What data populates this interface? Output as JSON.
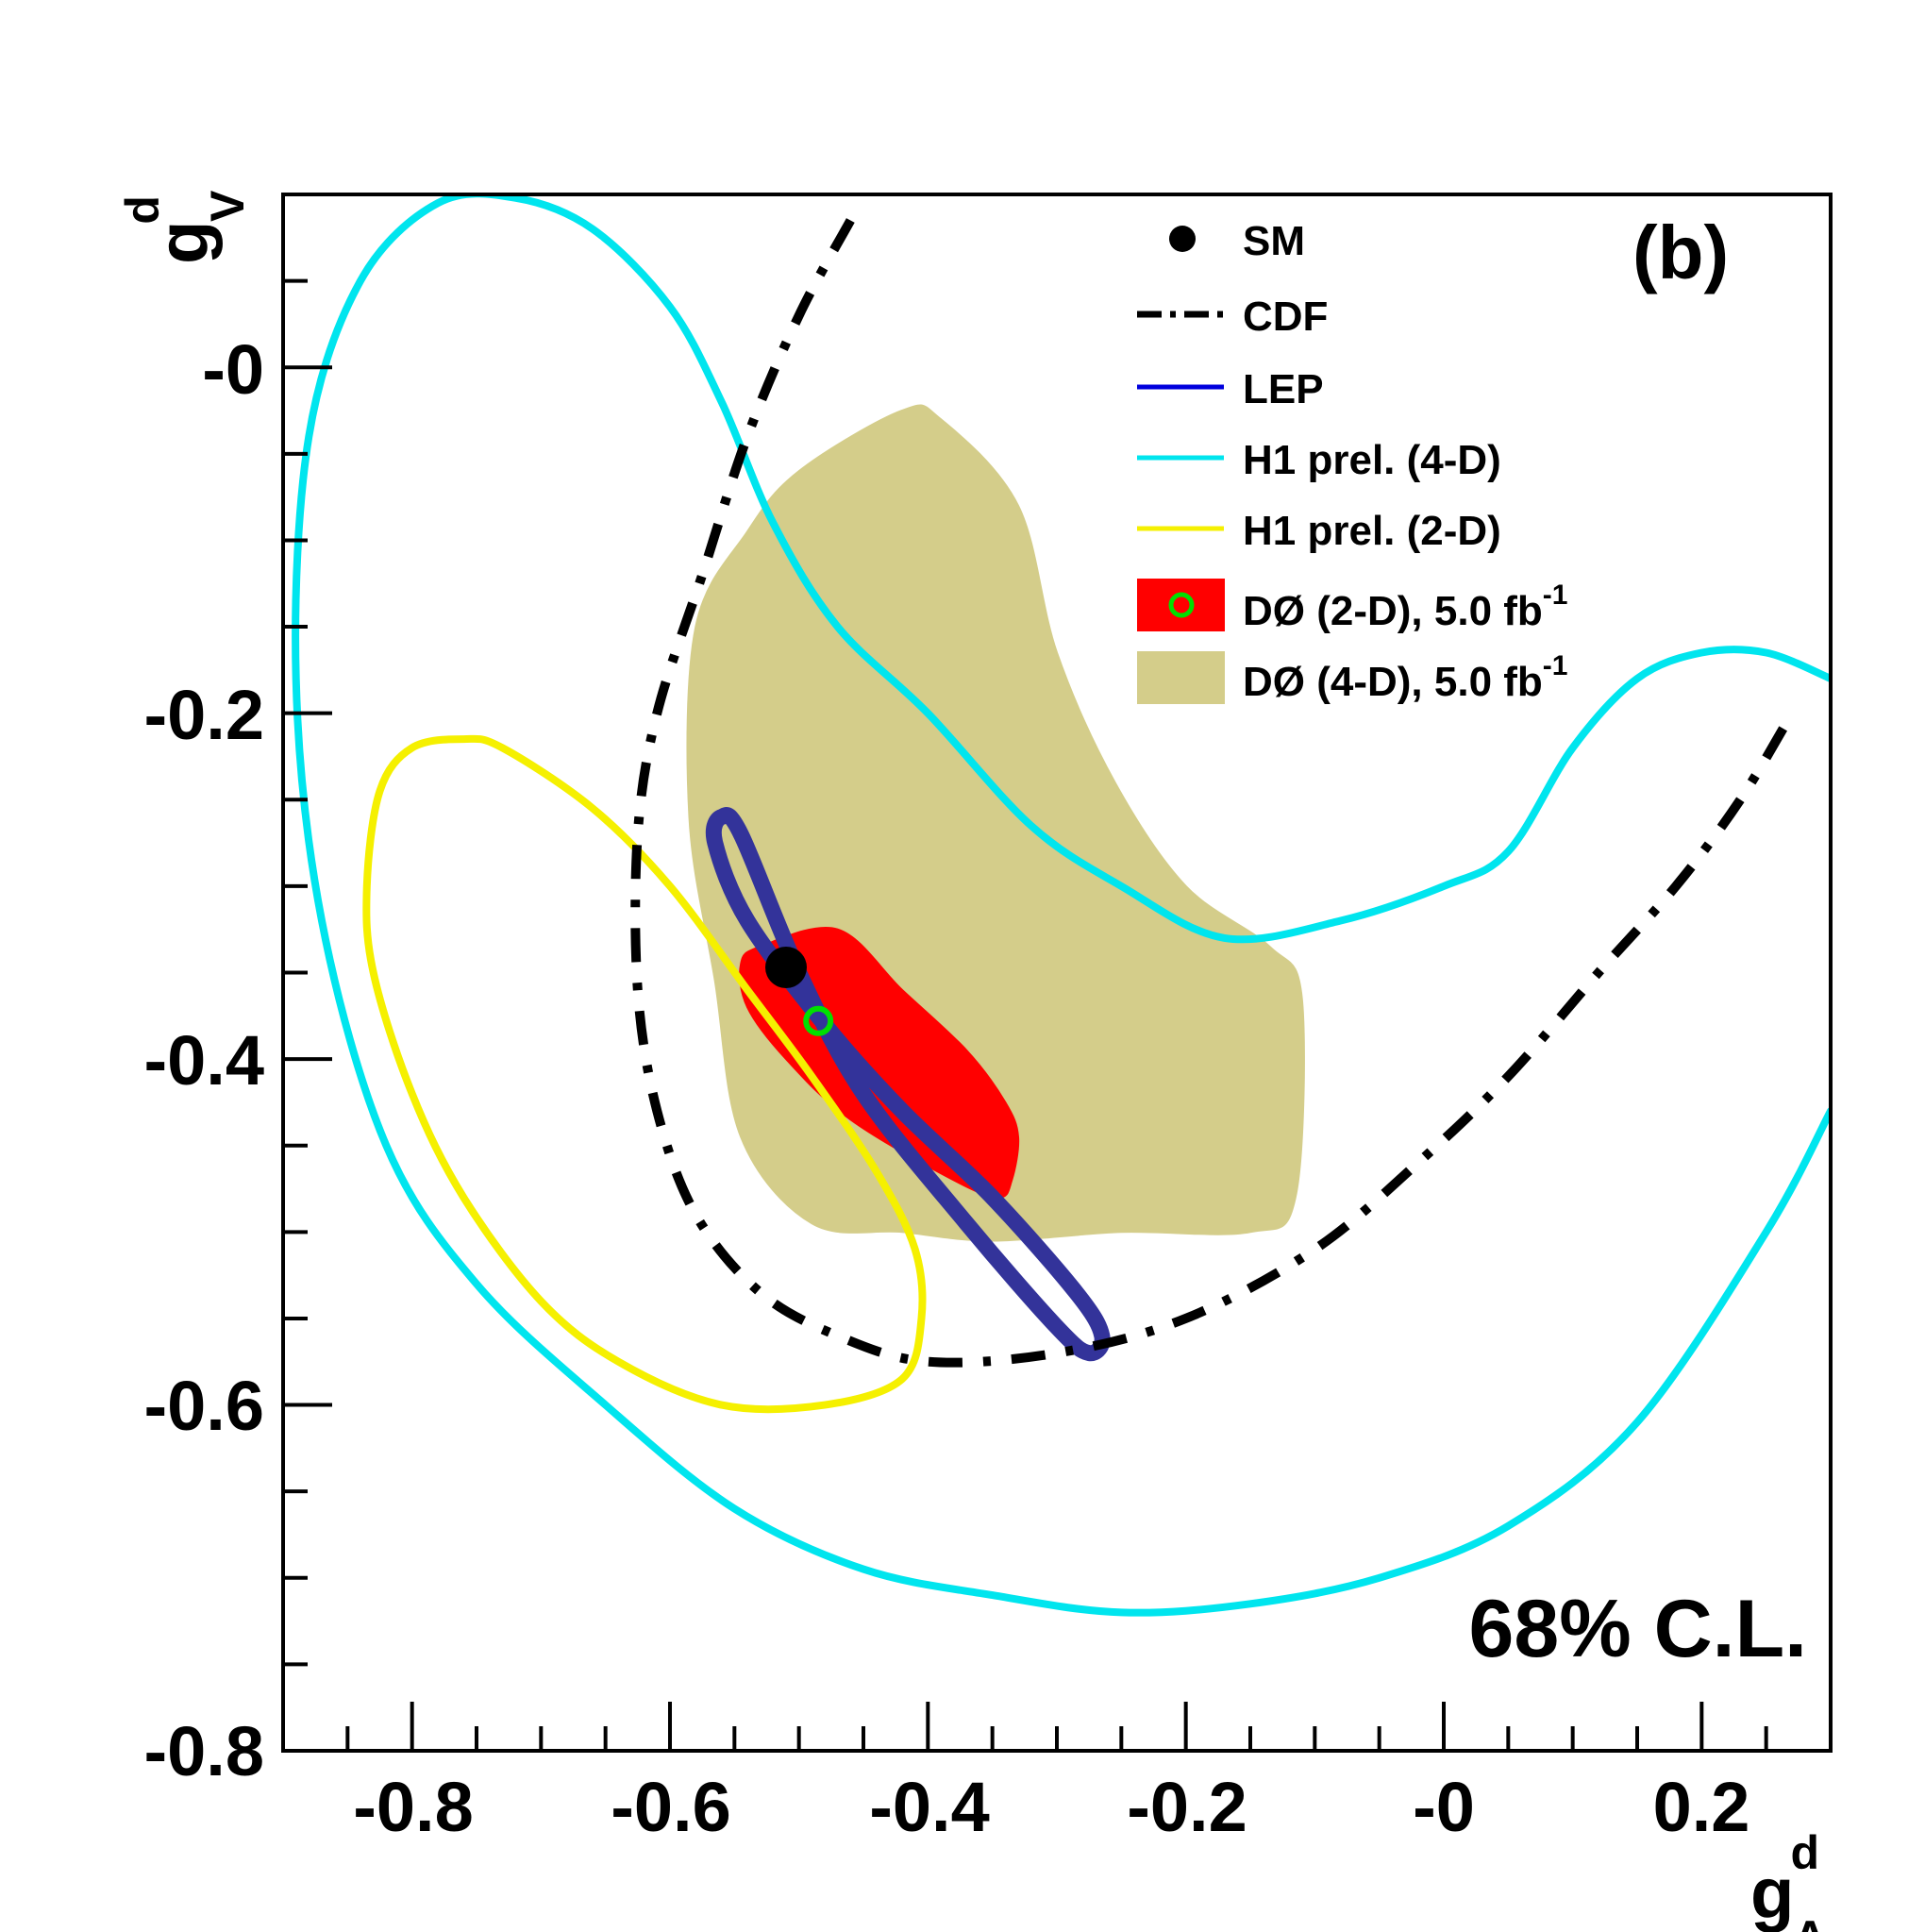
{
  "chart_data": {
    "type": "contour",
    "panel_label": "(b)",
    "annotation": "68% C.L.",
    "x_axis": {
      "label_main": "g",
      "label_sup": "d",
      "label_sub": "A",
      "range": [
        -0.9,
        0.3
      ],
      "major_ticks": [
        -0.8,
        -0.6,
        -0.4,
        -0.2,
        0.0,
        0.2
      ],
      "tick_labels": [
        "-0.8",
        "-0.6",
        "-0.4",
        "-0.2",
        "-0",
        "0.2"
      ],
      "minor_step": 0.05
    },
    "y_axis": {
      "label_main": "g",
      "label_sup": "d",
      "label_sub": "V",
      "range": [
        -0.8,
        0.1
      ],
      "major_ticks": [
        -0.8,
        -0.6,
        -0.4,
        -0.2,
        0.0
      ],
      "tick_labels": [
        "-0.8",
        "-0.6",
        "-0.4",
        "-0.2",
        "-0"
      ],
      "minor_step": 0.05
    },
    "legend": {
      "position": "top-right",
      "items": [
        {
          "key": "sm",
          "label": "SM",
          "sup": ""
        },
        {
          "key": "cdf",
          "label": "CDF",
          "sup": ""
        },
        {
          "key": "lep",
          "label": "LEP",
          "sup": ""
        },
        {
          "key": "h1_4d",
          "label": "H1 prel. (4-D)",
          "sup": ""
        },
        {
          "key": "h1_2d",
          "label": "H1 prel. (2-D)",
          "sup": ""
        },
        {
          "key": "d0_2d",
          "label": "DØ (2-D), 5.0 fb",
          "sup": "-1"
        },
        {
          "key": "d0_4d",
          "label": "DØ (4-D), 5.0 fb",
          "sup": "-1"
        }
      ]
    },
    "colors": {
      "sm": "#000000",
      "cdf": "#000000",
      "lep": "#33339a",
      "h1_4d": "#00e5ee",
      "h1_2d": "#f5f000",
      "d0_2d": "#ff0000",
      "d0_2d_marker": "#00e000",
      "d0_4d": "#d4cd8a"
    },
    "series": [
      {
        "name": "DØ (4-D), 5.0 fb-1",
        "kind": "filled",
        "points": [
          [
            -0.42,
            -0.025
          ],
          [
            -0.39,
            -0.03
          ],
          [
            -0.33,
            -0.08
          ],
          [
            -0.3,
            -0.165
          ],
          [
            -0.255,
            -0.24
          ],
          [
            -0.2,
            -0.3
          ],
          [
            -0.135,
            -0.335
          ],
          [
            -0.11,
            -0.365
          ],
          [
            -0.115,
            -0.48
          ],
          [
            -0.15,
            -0.5
          ],
          [
            -0.25,
            -0.5
          ],
          [
            -0.35,
            -0.505
          ],
          [
            -0.42,
            -0.5
          ],
          [
            -0.49,
            -0.495
          ],
          [
            -0.545,
            -0.445
          ],
          [
            -0.565,
            -0.355
          ],
          [
            -0.585,
            -0.26
          ],
          [
            -0.58,
            -0.15
          ],
          [
            -0.54,
            -0.095
          ],
          [
            -0.5,
            -0.06
          ]
        ]
      },
      {
        "name": "DØ (2-D), 5.0 fb-1",
        "kind": "filled",
        "points": [
          [
            -0.53,
            -0.335
          ],
          [
            -0.47,
            -0.325
          ],
          [
            -0.42,
            -0.36
          ],
          [
            -0.37,
            -0.395
          ],
          [
            -0.34,
            -0.425
          ],
          [
            -0.33,
            -0.445
          ],
          [
            -0.335,
            -0.47
          ],
          [
            -0.345,
            -0.48
          ],
          [
            -0.38,
            -0.47
          ],
          [
            -0.46,
            -0.435
          ],
          [
            -0.51,
            -0.4
          ],
          [
            -0.54,
            -0.37
          ],
          [
            -0.545,
            -0.345
          ]
        ]
      },
      {
        "name": "H1 prel. (4-D)",
        "kind": "line",
        "closed": false,
        "points": [
          [
            0.3,
            -0.43
          ],
          [
            0.25,
            -0.5
          ],
          [
            0.15,
            -0.61
          ],
          [
            0.05,
            -0.67
          ],
          [
            -0.05,
            -0.7
          ],
          [
            -0.15,
            -0.715
          ],
          [
            -0.25,
            -0.72
          ],
          [
            -0.35,
            -0.71
          ],
          [
            -0.45,
            -0.695
          ],
          [
            -0.55,
            -0.66
          ],
          [
            -0.65,
            -0.6
          ],
          [
            -0.75,
            -0.53
          ],
          [
            -0.82,
            -0.45
          ],
          [
            -0.87,
            -0.32
          ],
          [
            -0.89,
            -0.18
          ],
          [
            -0.88,
            -0.04
          ],
          [
            -0.84,
            0.05
          ],
          [
            -0.78,
            0.095
          ],
          [
            -0.72,
            0.098
          ],
          [
            -0.66,
            0.08
          ],
          [
            -0.6,
            0.035
          ],
          [
            -0.56,
            -0.02
          ],
          [
            -0.52,
            -0.09
          ],
          [
            -0.47,
            -0.15
          ],
          [
            -0.4,
            -0.2
          ],
          [
            -0.32,
            -0.265
          ],
          [
            -0.25,
            -0.3
          ],
          [
            -0.17,
            -0.33
          ],
          [
            -0.08,
            -0.32
          ],
          [
            0.0,
            -0.3
          ],
          [
            0.05,
            -0.28
          ],
          [
            0.1,
            -0.22
          ],
          [
            0.15,
            -0.18
          ],
          [
            0.2,
            -0.165
          ],
          [
            0.25,
            -0.165
          ],
          [
            0.3,
            -0.18
          ]
        ]
      },
      {
        "name": "H1 prel. (2-D)",
        "kind": "line",
        "closed": true,
        "points": [
          [
            -0.76,
            -0.215
          ],
          [
            -0.73,
            -0.22
          ],
          [
            -0.66,
            -0.255
          ],
          [
            -0.6,
            -0.3
          ],
          [
            -0.54,
            -0.36
          ],
          [
            -0.49,
            -0.41
          ],
          [
            -0.44,
            -0.465
          ],
          [
            -0.41,
            -0.51
          ],
          [
            -0.405,
            -0.55
          ],
          [
            -0.42,
            -0.585
          ],
          [
            -0.48,
            -0.6
          ],
          [
            -0.56,
            -0.6
          ],
          [
            -0.64,
            -0.575
          ],
          [
            -0.7,
            -0.54
          ],
          [
            -0.76,
            -0.48
          ],
          [
            -0.8,
            -0.42
          ],
          [
            -0.83,
            -0.35
          ],
          [
            -0.835,
            -0.3
          ],
          [
            -0.825,
            -0.245
          ],
          [
            -0.8,
            -0.22
          ]
        ]
      },
      {
        "name": "LEP",
        "kind": "line",
        "closed": true,
        "points": [
          [
            -0.56,
            -0.26
          ],
          [
            -0.545,
            -0.27
          ],
          [
            -0.5,
            -0.35
          ],
          [
            -0.45,
            -0.42
          ],
          [
            -0.37,
            -0.495
          ],
          [
            -0.3,
            -0.555
          ],
          [
            -0.275,
            -0.57
          ],
          [
            -0.265,
            -0.56
          ],
          [
            -0.285,
            -0.535
          ],
          [
            -0.35,
            -0.48
          ],
          [
            -0.42,
            -0.43
          ],
          [
            -0.48,
            -0.38
          ],
          [
            -0.54,
            -0.32
          ],
          [
            -0.565,
            -0.275
          ]
        ]
      },
      {
        "name": "CDF",
        "kind": "dashdot",
        "closed": false,
        "points": [
          [
            -0.46,
            0.085
          ],
          [
            -0.5,
            0.03
          ],
          [
            -0.54,
            -0.04
          ],
          [
            -0.575,
            -0.12
          ],
          [
            -0.61,
            -0.2
          ],
          [
            -0.625,
            -0.27
          ],
          [
            -0.625,
            -0.36
          ],
          [
            -0.61,
            -0.43
          ],
          [
            -0.58,
            -0.49
          ],
          [
            -0.53,
            -0.535
          ],
          [
            -0.47,
            -0.56
          ],
          [
            -0.4,
            -0.575
          ],
          [
            -0.3,
            -0.57
          ],
          [
            -0.2,
            -0.55
          ],
          [
            -0.1,
            -0.51
          ],
          [
            -0.02,
            -0.46
          ],
          [
            0.05,
            -0.41
          ],
          [
            0.12,
            -0.35
          ],
          [
            0.18,
            -0.3
          ],
          [
            0.23,
            -0.25
          ],
          [
            0.27,
            -0.2
          ]
        ]
      }
    ],
    "points": [
      {
        "name": "SM",
        "x": -0.51,
        "y": -0.347
      },
      {
        "name": "DØ (2-D) best fit",
        "x": -0.485,
        "y": -0.378
      }
    ]
  }
}
